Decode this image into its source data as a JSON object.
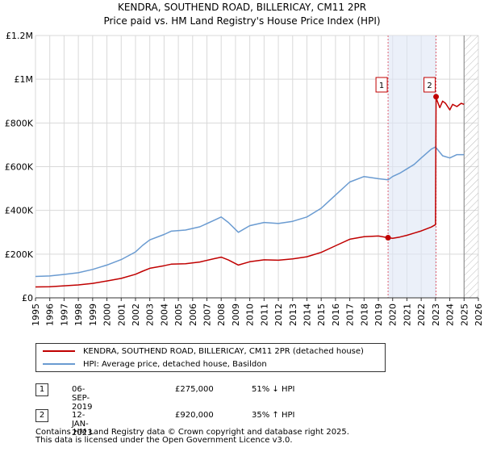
{
  "title": {
    "line1": "KENDRA, SOUTHEND ROAD, BILLERICAY, CM11 2PR",
    "line2": "Price paid vs. HM Land Registry's House Price Index (HPI)"
  },
  "chart_data": {
    "type": "line",
    "title": "KENDRA, SOUTHEND ROAD, BILLERICAY, CM11 2PR",
    "subtitle": "Price paid vs. HM Land Registry's House Price Index (HPI)",
    "xlabel": "",
    "ylabel": "",
    "xlim": [
      1995,
      2026
    ],
    "ylim": [
      0,
      1200000
    ],
    "x_ticks": [
      "1995",
      "1996",
      "1997",
      "1998",
      "1999",
      "2000",
      "2001",
      "2002",
      "2003",
      "2004",
      "2005",
      "2006",
      "2007",
      "2008",
      "2009",
      "2010",
      "2011",
      "2012",
      "2013",
      "2014",
      "2015",
      "2016",
      "2017",
      "2018",
      "2019",
      "2020",
      "2021",
      "2022",
      "2023",
      "2024",
      "2025",
      "2026"
    ],
    "y_ticks": [
      {
        "value": 0,
        "label": "£0"
      },
      {
        "value": 200000,
        "label": "£200K"
      },
      {
        "value": 400000,
        "label": "£400K"
      },
      {
        "value": 600000,
        "label": "£600K"
      },
      {
        "value": 800000,
        "label": "£800K"
      },
      {
        "value": 1000000,
        "label": "£1M"
      },
      {
        "value": 1200000,
        "label": "£1.2M"
      }
    ],
    "grid": true,
    "shaded_period": [
      2019.68,
      2023.04
    ],
    "future_hatch_start": 2025.0,
    "series": [
      {
        "name": "HPI: Average price, detached house, Basildon",
        "color": "#6a9bd1",
        "x": [
          1995.0,
          1996.0,
          1997.0,
          1998.0,
          1999.0,
          2000.0,
          2001.0,
          2002.0,
          2002.5,
          2003.0,
          2004.0,
          2004.5,
          2005.5,
          2006.5,
          2007.5,
          2008.0,
          2008.5,
          2009.2,
          2010.0,
          2011.0,
          2012.0,
          2013.0,
          2014.0,
          2015.0,
          2016.0,
          2017.0,
          2018.0,
          2019.0,
          2019.68,
          2020.0,
          2020.5,
          2021.0,
          2021.5,
          2022.0,
          2022.7,
          2023.0,
          2023.5,
          2024.0,
          2024.5,
          2025.0
        ],
        "y": [
          98000,
          100000,
          107000,
          115000,
          130000,
          150000,
          175000,
          210000,
          240000,
          265000,
          290000,
          305000,
          310000,
          325000,
          355000,
          370000,
          345000,
          300000,
          330000,
          345000,
          340000,
          350000,
          370000,
          410000,
          470000,
          530000,
          555000,
          545000,
          540000,
          555000,
          570000,
          590000,
          610000,
          640000,
          680000,
          690000,
          650000,
          640000,
          655000,
          655000
        ]
      },
      {
        "name": "KENDRA, SOUTHEND ROAD, BILLERICAY, CM11 2PR (detached house)",
        "color": "#c00000",
        "x": [
          1995.0,
          1996.0,
          1997.0,
          1998.0,
          1999.0,
          2000.0,
          2001.0,
          2002.0,
          2002.5,
          2003.0,
          2004.0,
          2004.5,
          2005.5,
          2006.5,
          2007.5,
          2008.0,
          2008.5,
          2009.2,
          2010.0,
          2011.0,
          2012.0,
          2013.0,
          2014.0,
          2015.0,
          2016.0,
          2017.0,
          2018.0,
          2019.0,
          2019.68,
          2020.0,
          2020.5,
          2021.0,
          2021.5,
          2022.0,
          2022.7,
          2023.0,
          2023.04,
          2023.1,
          2023.3,
          2023.5,
          2023.7,
          2024.0,
          2024.2,
          2024.5,
          2024.8,
          2025.0
        ],
        "y": [
          50000,
          51000,
          55000,
          59000,
          66000,
          77000,
          89000,
          108000,
          122000,
          135000,
          147000,
          154000,
          156000,
          164000,
          179000,
          186000,
          173000,
          150000,
          165000,
          174000,
          172000,
          178000,
          188000,
          208000,
          238000,
          268000,
          280000,
          283000,
          275000,
          272000,
          278000,
          286000,
          296000,
          306000,
          324000,
          335000,
          920000,
          905000,
          870000,
          900000,
          890000,
          860000,
          885000,
          875000,
          890000,
          885000
        ]
      }
    ],
    "markers": [
      {
        "id": "1",
        "x": 2019.68,
        "y": 275000
      },
      {
        "id": "2",
        "x": 2023.04,
        "y": 920000
      }
    ]
  },
  "legend": {
    "property_label": "KENDRA, SOUTHEND ROAD, BILLERICAY, CM11 2PR (detached house)",
    "hpi_label": "HPI: Average price, detached house, Basildon",
    "property_color": "#c00000",
    "hpi_color": "#6a9bd1"
  },
  "transactions": [
    {
      "num": "1",
      "date": "06-SEP-2019",
      "price": "£275,000",
      "hpi": "51% ↓ HPI"
    },
    {
      "num": "2",
      "date": "12-JAN-2023",
      "price": "£920,000",
      "hpi": "35% ↑ HPI"
    }
  ],
  "footer": {
    "line1": "Contains HM Land Registry data © Crown copyright and database right 2025.",
    "line2": "This data is licensed under the Open Government Licence v3.0."
  }
}
